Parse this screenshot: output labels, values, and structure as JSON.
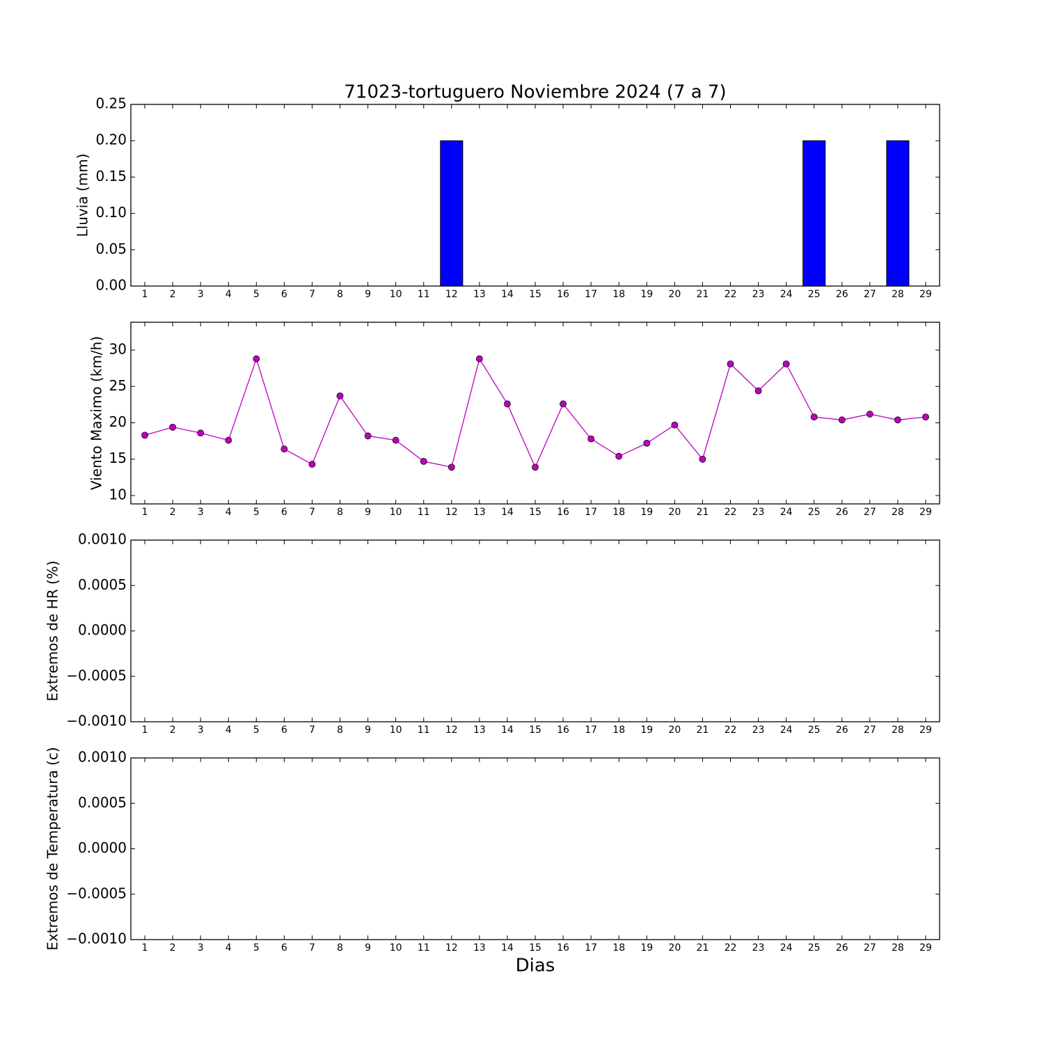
{
  "chart_data": [
    {
      "type": "bar",
      "title": "71023-tortuguero Noviembre 2024  (7 a 7)",
      "y_label": "Lluvia (mm)",
      "x": [
        1,
        2,
        3,
        4,
        5,
        6,
        7,
        8,
        9,
        10,
        11,
        12,
        13,
        14,
        15,
        16,
        17,
        18,
        19,
        20,
        21,
        22,
        23,
        24,
        25,
        26,
        27,
        28,
        29
      ],
      "values": [
        0,
        0,
        0,
        0,
        0,
        0,
        0,
        0,
        0,
        0,
        0,
        0.2,
        0,
        0,
        0,
        0,
        0,
        0,
        0,
        0,
        0,
        0,
        0,
        0,
        0.2,
        0,
        0,
        0.2,
        0
      ],
      "color": "#0000ff",
      "xlim": [
        0.5,
        29.5
      ],
      "xticks": [
        1,
        2,
        3,
        4,
        5,
        6,
        7,
        8,
        9,
        10,
        11,
        12,
        13,
        14,
        15,
        16,
        17,
        18,
        19,
        20,
        21,
        22,
        23,
        24,
        25,
        26,
        27,
        28,
        29
      ],
      "ylim": [
        0,
        0.25
      ],
      "yticks": [
        {
          "value": 0,
          "label": "0.00"
        },
        {
          "value": 0.05,
          "label": "0.05"
        },
        {
          "value": 0.1,
          "label": "0.10"
        },
        {
          "value": 0.15,
          "label": "0.15"
        },
        {
          "value": 0.2,
          "label": "0.20"
        },
        {
          "value": 0.25,
          "label": "0.25"
        }
      ]
    },
    {
      "type": "line",
      "y_label": "Viento Maximo (km/h)",
      "x": [
        1,
        2,
        3,
        4,
        5,
        6,
        7,
        8,
        9,
        10,
        11,
        12,
        13,
        14,
        15,
        16,
        17,
        18,
        19,
        20,
        21,
        22,
        23,
        24,
        25,
        26,
        27,
        28,
        29
      ],
      "values": [
        18.3,
        19.4,
        18.6,
        17.6,
        28.8,
        16.4,
        14.3,
        23.7,
        18.2,
        17.6,
        14.7,
        13.9,
        28.8,
        22.6,
        13.9,
        22.6,
        17.8,
        15.4,
        17.2,
        19.7,
        15.0,
        28.1,
        24.4,
        28.1,
        20.8,
        20.4,
        21.2,
        20.4,
        20.8
      ],
      "color": "#bf00bf",
      "xlim": [
        0.5,
        29.5
      ],
      "xticks": [
        1,
        2,
        3,
        4,
        5,
        6,
        7,
        8,
        9,
        10,
        11,
        12,
        13,
        14,
        15,
        16,
        17,
        18,
        19,
        20,
        21,
        22,
        23,
        24,
        25,
        26,
        27,
        28,
        29
      ],
      "ylim": [
        8.85,
        33.83
      ],
      "yticks": [
        10,
        15,
        20,
        25,
        30
      ]
    },
    {
      "type": "line",
      "y_label": "Extremos de HR (%)",
      "xlim": [
        0.5,
        29.5
      ],
      "xticks": [
        1,
        2,
        3,
        4,
        5,
        6,
        7,
        8,
        9,
        10,
        11,
        12,
        13,
        14,
        15,
        16,
        17,
        18,
        19,
        20,
        21,
        22,
        23,
        24,
        25,
        26,
        27,
        28,
        29
      ],
      "ylim": [
        -0.001,
        0.001
      ],
      "yticks": [
        {
          "value": -0.001,
          "label": "−0.0010"
        },
        {
          "value": -0.0005,
          "label": "−0.0005"
        },
        {
          "value": 0,
          "label": "0.0000"
        },
        {
          "value": 0.0005,
          "label": "0.0005"
        },
        {
          "value": 0.001,
          "label": "0.0010"
        }
      ]
    },
    {
      "type": "line",
      "y_label": "Extremos de Temperatura (c)",
      "x_label": "Dias",
      "xlim": [
        0.5,
        29.5
      ],
      "xticks": [
        1,
        2,
        3,
        4,
        5,
        6,
        7,
        8,
        9,
        10,
        11,
        12,
        13,
        14,
        15,
        16,
        17,
        18,
        19,
        20,
        21,
        22,
        23,
        24,
        25,
        26,
        27,
        28,
        29
      ],
      "ylim": [
        -0.001,
        0.001
      ],
      "yticks": [
        {
          "value": -0.001,
          "label": "−0.0010"
        },
        {
          "value": -0.0005,
          "label": "−0.0005"
        },
        {
          "value": 0,
          "label": "0.0000"
        },
        {
          "value": 0.0005,
          "label": "0.0005"
        },
        {
          "value": 0.001,
          "label": "0.0010"
        }
      ]
    }
  ]
}
